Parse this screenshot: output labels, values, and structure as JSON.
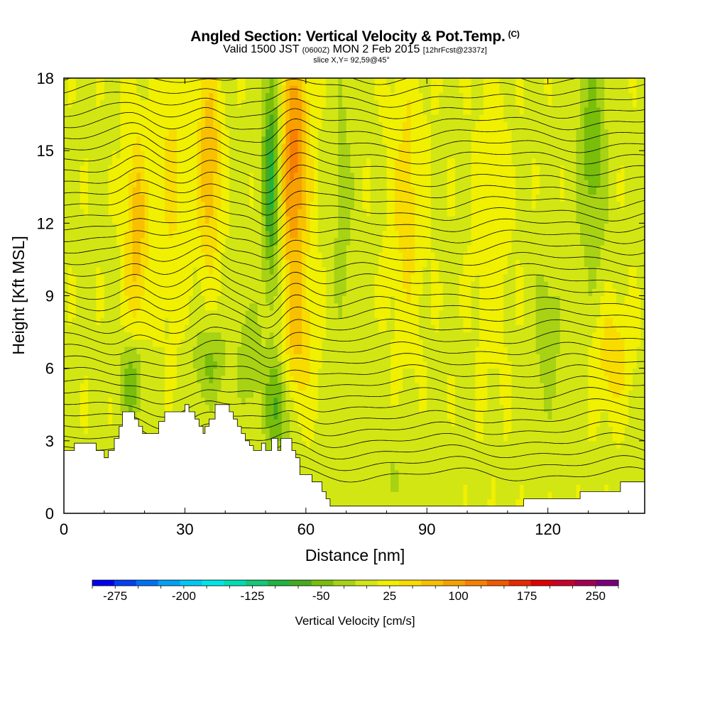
{
  "chart_data": {
    "type": "heatmap",
    "title": "Angled Section: Vertical Velocity & Pot.Temp.",
    "title_suffix": "(C)",
    "subtitle_main_a": "Valid 1500 JST",
    "subtitle_small_a": "(0600Z)",
    "subtitle_main_b": "MON 2 Feb 2015",
    "subtitle_small_b": "[12hrFcst@2337z]",
    "slice": "slice X,Y= 92,59@45°",
    "xlabel": "Distance [nm]",
    "ylabel": "Height [Kft MSL]",
    "xlim": [
      0,
      144
    ],
    "ylim": [
      0,
      18
    ],
    "xticks": [
      0,
      30,
      60,
      90,
      120
    ],
    "yticks": [
      0,
      3,
      6,
      9,
      12,
      15,
      18
    ],
    "colorbar": {
      "label": "Vertical Velocity [cm/s]",
      "tick_values": [
        -275,
        -200,
        -125,
        -50,
        25,
        100,
        175,
        250
      ],
      "tick_labels": [
        "-275",
        "-200",
        "-125",
        "-50",
        "25",
        "100",
        "175",
        "250"
      ],
      "min": -300,
      "max": 275,
      "step": 25,
      "colors": [
        "#0000ee",
        "#0040f0",
        "#0070f2",
        "#00a0f4",
        "#00c8f2",
        "#00e6e6",
        "#00dcb4",
        "#14c878",
        "#1eb440",
        "#46aa1e",
        "#78be0a",
        "#a8d214",
        "#d2e614",
        "#f0f000",
        "#f8dc00",
        "#f8c000",
        "#f8a000",
        "#f88000",
        "#f05a00",
        "#e82800",
        "#dc0000",
        "#c8002a",
        "#a00050",
        "#780078"
      ]
    },
    "terrain": [
      [
        0,
        2.6
      ],
      [
        2.6,
        2.6
      ],
      [
        2.6,
        2.9
      ],
      [
        8,
        2.9
      ],
      [
        8,
        2.6
      ],
      [
        10,
        2.6
      ],
      [
        10,
        2.3
      ],
      [
        11,
        2.3
      ],
      [
        11,
        2.6
      ],
      [
        12.5,
        2.6
      ],
      [
        12.5,
        3.1
      ],
      [
        13.7,
        3.1
      ],
      [
        13.7,
        3.6
      ],
      [
        14.5,
        3.6
      ],
      [
        14.5,
        4.2
      ],
      [
        17.5,
        4.2
      ],
      [
        17.5,
        3.9
      ],
      [
        18.5,
        3.9
      ],
      [
        18.5,
        3.6
      ],
      [
        19.5,
        3.6
      ],
      [
        19.5,
        3.3
      ],
      [
        23.5,
        3.3
      ],
      [
        23.5,
        3.8
      ],
      [
        25,
        3.8
      ],
      [
        25,
        4.2
      ],
      [
        30,
        4.2
      ],
      [
        30,
        4.5
      ],
      [
        31,
        4.5
      ],
      [
        31,
        4.2
      ],
      [
        32.5,
        4.2
      ],
      [
        32.5,
        3.9
      ],
      [
        33.5,
        3.9
      ],
      [
        33.5,
        3.6
      ],
      [
        34.5,
        3.6
      ],
      [
        34.5,
        3.3
      ],
      [
        35,
        3.3
      ],
      [
        35,
        3.6
      ],
      [
        36,
        3.6
      ],
      [
        36,
        3.9
      ],
      [
        37.5,
        3.9
      ],
      [
        37.5,
        4.5
      ],
      [
        41,
        4.5
      ],
      [
        41,
        4.2
      ],
      [
        42,
        4.2
      ],
      [
        42,
        3.9
      ],
      [
        43,
        3.9
      ],
      [
        43,
        3.6
      ],
      [
        44,
        3.6
      ],
      [
        44,
        3.3
      ],
      [
        45,
        3.3
      ],
      [
        45,
        3.0
      ],
      [
        46,
        3.0
      ],
      [
        46,
        2.8
      ],
      [
        47,
        2.8
      ],
      [
        47,
        2.6
      ],
      [
        49,
        2.6
      ],
      [
        49,
        2.9
      ],
      [
        50,
        2.9
      ],
      [
        50,
        2.6
      ],
      [
        51.5,
        2.6
      ],
      [
        51.5,
        3.1
      ],
      [
        53,
        3.1
      ],
      [
        53,
        2.6
      ],
      [
        53.8,
        2.6
      ],
      [
        53.8,
        3.1
      ],
      [
        56.5,
        3.1
      ],
      [
        56.5,
        2.6
      ],
      [
        57.5,
        2.6
      ],
      [
        57.5,
        2.3
      ],
      [
        58.5,
        2.3
      ],
      [
        58.5,
        1.6
      ],
      [
        61.5,
        1.6
      ],
      [
        61.5,
        1.3
      ],
      [
        64,
        1.3
      ],
      [
        64,
        0.9
      ],
      [
        65,
        0.9
      ],
      [
        65,
        0.6
      ],
      [
        66,
        0.6
      ],
      [
        66,
        0.3
      ],
      [
        114,
        0.3
      ],
      [
        114,
        0.6
      ],
      [
        128,
        0.6
      ],
      [
        128,
        0.9
      ],
      [
        138,
        0.9
      ],
      [
        138,
        1.3
      ],
      [
        144,
        1.3
      ]
    ],
    "vv_band_centers": {
      "positive_strong": [
        57,
        36,
        18
      ],
      "negative_strong": [
        52,
        131
      ]
    }
  }
}
